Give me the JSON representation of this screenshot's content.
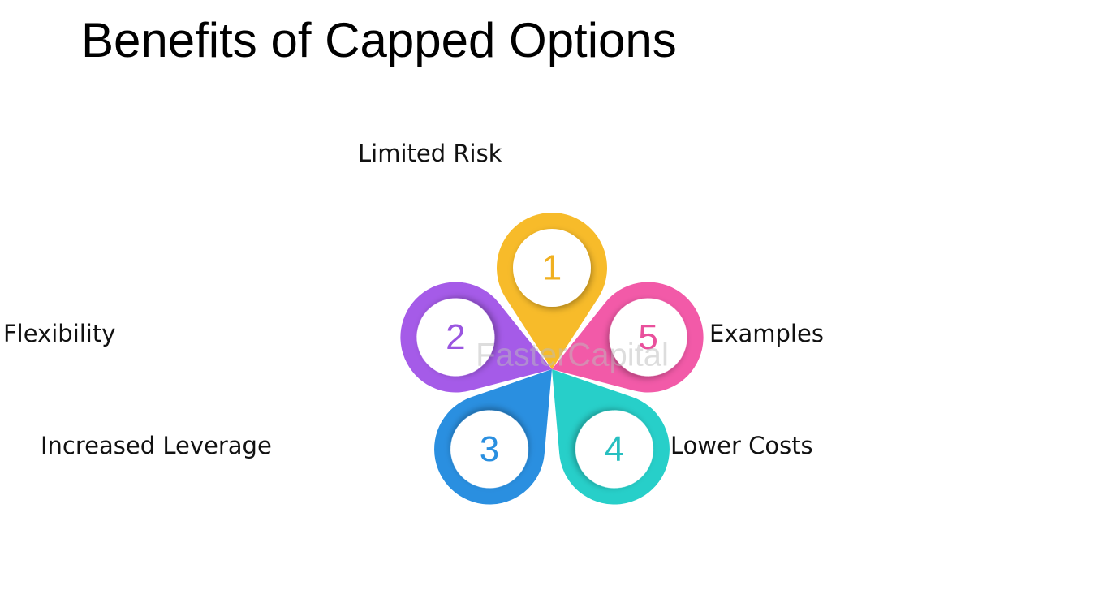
{
  "title": "Benefits of Capped Options",
  "watermark": "FasterCapital",
  "nodes": [
    {
      "number": "1",
      "label": "Limited Risk"
    },
    {
      "number": "2",
      "label": "Flexibility"
    },
    {
      "number": "3",
      "label": "Increased Leverage"
    },
    {
      "number": "4",
      "label": "Lower Costs"
    },
    {
      "number": "5",
      "label": "Examples"
    }
  ]
}
